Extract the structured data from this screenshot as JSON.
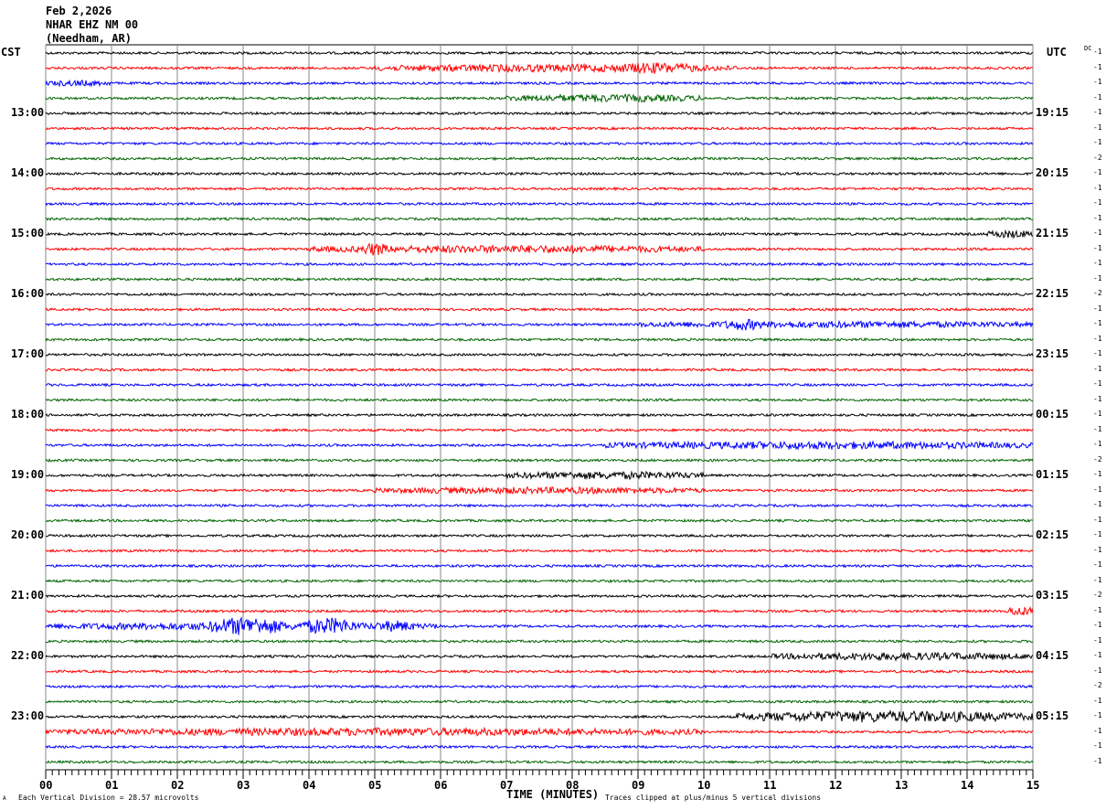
{
  "header": {
    "date": "Feb 2,2026",
    "station": "NHAR EHZ NM 00",
    "location": "(Needham, AR)"
  },
  "left_tz": "CST",
  "right_tz": "UTC",
  "dc_label": "DC",
  "footer": {
    "scale": "Each Vertical Division =   28.57 microvolts",
    "xlabel": "TIME (MINUTES)",
    "clip": "Traces clipped at plus/minus 5 vertical divisions",
    "corner": "A"
  },
  "chart_data": {
    "type": "line",
    "xlabel": "TIME (MINUTES)",
    "xlim": [
      0,
      15
    ],
    "x_ticks": [
      "00",
      "01",
      "02",
      "03",
      "04",
      "05",
      "06",
      "07",
      "08",
      "09",
      "10",
      "11",
      "12",
      "13",
      "14",
      "15"
    ],
    "left_labels": [
      "",
      "13:00",
      "14:00",
      "15:00",
      "16:00",
      "17:00",
      "18:00",
      "19:00",
      "20:00",
      "21:00",
      "22:00",
      "23:00"
    ],
    "right_labels": [
      "",
      "19:15",
      "20:15",
      "21:15",
      "22:15",
      "23:15",
      "00:15",
      "01:15",
      "02:15",
      "03:15",
      "04:15",
      "05:15"
    ],
    "trace_colors": [
      "#000000",
      "#ff0000",
      "#0000ff",
      "#006400"
    ],
    "traces_per_hour": 4,
    "dc_offsets": [
      -1,
      -1,
      -1,
      -1,
      -1,
      -1,
      -1,
      -2,
      -1,
      -1,
      -1,
      -1,
      -1,
      -1,
      -1,
      -1,
      -2,
      -1,
      -1,
      -1,
      -1,
      -1,
      -1,
      -1,
      -1,
      -1,
      -1,
      -2,
      -1,
      -1,
      -1,
      -1,
      -1,
      -1,
      -1,
      -1,
      -2,
      -1,
      -1,
      -1,
      -1,
      -1,
      -2,
      -1,
      -1,
      -1,
      -1,
      -1
    ],
    "events": [
      {
        "trace": 1,
        "start": 5,
        "end": 10.5,
        "amp": 3
      },
      {
        "trace": 1,
        "start": 8.6,
        "end": 9.9,
        "amp": 5
      },
      {
        "trace": 2,
        "start": 0,
        "end": 1,
        "amp": 2
      },
      {
        "trace": 3,
        "start": 7,
        "end": 10,
        "amp": 3
      },
      {
        "trace": 12,
        "start": 14.3,
        "end": 15,
        "amp": 3
      },
      {
        "trace": 13,
        "start": 4,
        "end": 10,
        "amp": 3
      },
      {
        "trace": 13,
        "start": 4.8,
        "end": 5.2,
        "amp": 6
      },
      {
        "trace": 18,
        "start": 9,
        "end": 15,
        "amp": 2.5
      },
      {
        "trace": 18,
        "start": 10.3,
        "end": 10.9,
        "amp": 5
      },
      {
        "trace": 26,
        "start": 8.5,
        "end": 15,
        "amp": 3
      },
      {
        "trace": 28,
        "start": 7,
        "end": 10,
        "amp": 3
      },
      {
        "trace": 29,
        "start": 5,
        "end": 10,
        "amp": 2.5
      },
      {
        "trace": 37,
        "start": 14.6,
        "end": 15,
        "amp": 4
      },
      {
        "trace": 38,
        "start": 0,
        "end": 6,
        "amp": 3
      },
      {
        "trace": 38,
        "start": 2.5,
        "end": 3.6,
        "amp": 9
      },
      {
        "trace": 38,
        "start": 3.9,
        "end": 4.7,
        "amp": 8
      },
      {
        "trace": 38,
        "start": 5,
        "end": 5.6,
        "amp": 5
      },
      {
        "trace": 40,
        "start": 11,
        "end": 15,
        "amp": 3
      },
      {
        "trace": 44,
        "start": 10.5,
        "end": 15,
        "amp": 5
      },
      {
        "trace": 45,
        "start": 0,
        "end": 10,
        "amp": 3
      }
    ]
  }
}
